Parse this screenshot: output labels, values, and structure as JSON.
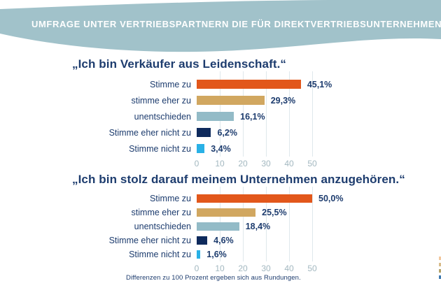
{
  "header": {
    "title": "UMFRAGE UNTER VERTRIEBSPARTNERN DIE FÜR DIREKTVERTRIEBSUNTERNEHMEN TÄTIG SIND",
    "band_color": "#a1c2ca"
  },
  "footer": {
    "note": "Differenzen zu 100 Prozent ergeben sich aus Rundungen."
  },
  "colors": {
    "title_text": "#1d3c6e",
    "value_text": "#1d3c6e",
    "tick_text": "#a3b8c0",
    "gridline": "#dfe8ec",
    "bar_agree": "#e2571b",
    "bar_rather_agree": "#d1a760",
    "bar_undecided": "#93bbc7",
    "bar_rather_disagree": "#0e2a5c",
    "bar_disagree": "#29b1e6"
  },
  "edge_marks": [
    "#f2c79d",
    "#d8bc8a",
    "#b4a46c",
    "#3f7ab0"
  ],
  "chart_data": [
    {
      "type": "bar",
      "orientation": "horizontal",
      "title": "„Ich bin Verkäufer aus Leidenschaft.“",
      "categories": [
        "Stimme zu",
        "stimme eher zu",
        "unentschieden",
        "Stimme eher nicht zu",
        "Stimme nicht zu"
      ],
      "values": [
        45.1,
        29.3,
        16.1,
        6.2,
        3.4
      ],
      "value_labels": [
        "45,1%",
        "29,3%",
        "16,1%",
        "6,2%",
        "3,4%"
      ],
      "bar_colors": [
        "#e2571b",
        "#d1a760",
        "#93bbc7",
        "#0e2a5c",
        "#29b1e6"
      ],
      "xlim": [
        0,
        50
      ],
      "x_ticks": [
        0,
        10,
        20,
        30,
        40,
        50
      ],
      "grid": true,
      "legend": false
    },
    {
      "type": "bar",
      "orientation": "horizontal",
      "title": "„Ich bin stolz darauf meinem Unternehmen anzugehören.“",
      "categories": [
        "Stimme zu",
        "stimme eher zu",
        "unentschieden",
        "Stimme eher nicht zu",
        "Stimme nicht zu"
      ],
      "values": [
        50.0,
        25.5,
        18.4,
        4.6,
        1.6
      ],
      "value_labels": [
        "50,0%",
        "25,5%",
        "18,4%",
        "4,6%",
        "1,6%"
      ],
      "bar_colors": [
        "#e2571b",
        "#d1a760",
        "#93bbc7",
        "#0e2a5c",
        "#29b1e6"
      ],
      "xlim": [
        0,
        50
      ],
      "x_ticks": [
        0,
        10,
        20,
        30,
        40,
        50
      ],
      "grid": true,
      "legend": false
    }
  ]
}
